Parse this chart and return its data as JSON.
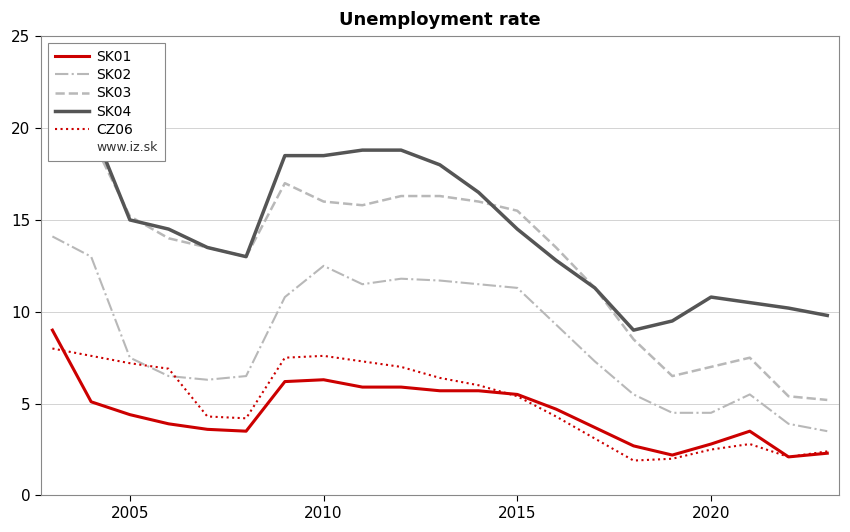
{
  "title": "Unemployment rate",
  "years": [
    2003,
    2004,
    2005,
    2006,
    2007,
    2008,
    2009,
    2010,
    2011,
    2012,
    2013,
    2014,
    2015,
    2016,
    2017,
    2018,
    2019,
    2020,
    2021,
    2022,
    2023
  ],
  "SK01": [
    9.0,
    5.1,
    4.4,
    3.9,
    3.6,
    3.5,
    6.2,
    6.3,
    5.9,
    5.9,
    5.7,
    5.7,
    5.5,
    4.7,
    3.7,
    2.7,
    2.2,
    2.8,
    3.5,
    2.1,
    2.3
  ],
  "SK02": [
    14.1,
    13.0,
    7.5,
    6.5,
    6.3,
    6.5,
    10.8,
    12.5,
    11.5,
    11.8,
    11.7,
    11.5,
    11.3,
    9.3,
    7.3,
    5.5,
    4.5,
    4.5,
    5.5,
    3.9,
    3.5
  ],
  "SK03": [
    20.0,
    19.5,
    15.2,
    14.0,
    13.5,
    13.0,
    17.0,
    16.0,
    15.8,
    16.3,
    16.3,
    16.0,
    15.5,
    13.5,
    11.3,
    8.5,
    6.5,
    7.0,
    7.5,
    5.4,
    5.2
  ],
  "SK04": [
    20.5,
    20.2,
    15.0,
    14.5,
    13.5,
    13.0,
    18.5,
    18.5,
    18.8,
    18.8,
    18.0,
    16.5,
    14.5,
    12.8,
    11.3,
    9.0,
    9.5,
    10.8,
    10.5,
    10.2,
    9.8
  ],
  "CZ06": [
    8.0,
    7.6,
    7.2,
    6.9,
    4.3,
    4.2,
    7.5,
    7.6,
    7.3,
    7.0,
    6.4,
    6.0,
    5.4,
    4.3,
    3.1,
    1.9,
    2.0,
    2.5,
    2.8,
    2.1,
    2.4
  ],
  "ylim": [
    0,
    25
  ],
  "yticks": [
    0,
    5,
    10,
    15,
    20,
    25
  ],
  "xticks": [
    2005,
    2010,
    2015,
    2020
  ],
  "SK01_color": "#cc0000",
  "SK02_color": "#b8b8b8",
  "SK03_color": "#b8b8b8",
  "SK04_color": "#555555",
  "CZ06_color": "#cc0000",
  "SK01_ls": "solid",
  "SK02_ls": "dashdot",
  "SK03_ls": "dashed",
  "SK04_ls": "solid",
  "CZ06_ls": "dotted",
  "SK01_lw": 2.2,
  "SK02_lw": 1.5,
  "SK03_lw": 1.8,
  "SK04_lw": 2.5,
  "CZ06_lw": 1.5,
  "watermark": "www.iz.sk"
}
